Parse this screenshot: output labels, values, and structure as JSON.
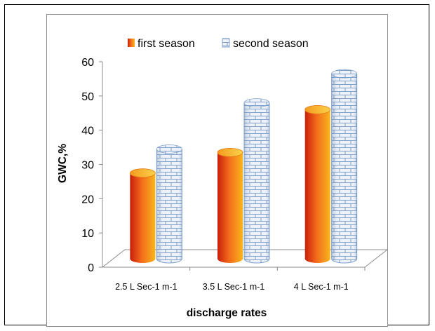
{
  "chart_data": {
    "type": "bar",
    "categories": [
      "2.5 L Sec-1 m-1",
      "3.5 L Sec-1 m-1",
      "4 L Sec-1 m-1"
    ],
    "series": [
      {
        "name": "first season",
        "values": [
          27.5,
          33.5,
          46
        ],
        "color": "#e8451b"
      },
      {
        "name": "second season",
        "values": [
          34.5,
          48,
          56.5
        ],
        "color": "#dce6f4"
      }
    ],
    "title": "",
    "xlabel": "discharge rates",
    "ylabel": "GWC,%",
    "ylim": [
      0,
      60
    ],
    "yticks": [
      "0",
      "10",
      "20",
      "30",
      "40",
      "50",
      "60"
    ],
    "grid": false,
    "legend_position": "top",
    "style": "3d-cylinder"
  }
}
